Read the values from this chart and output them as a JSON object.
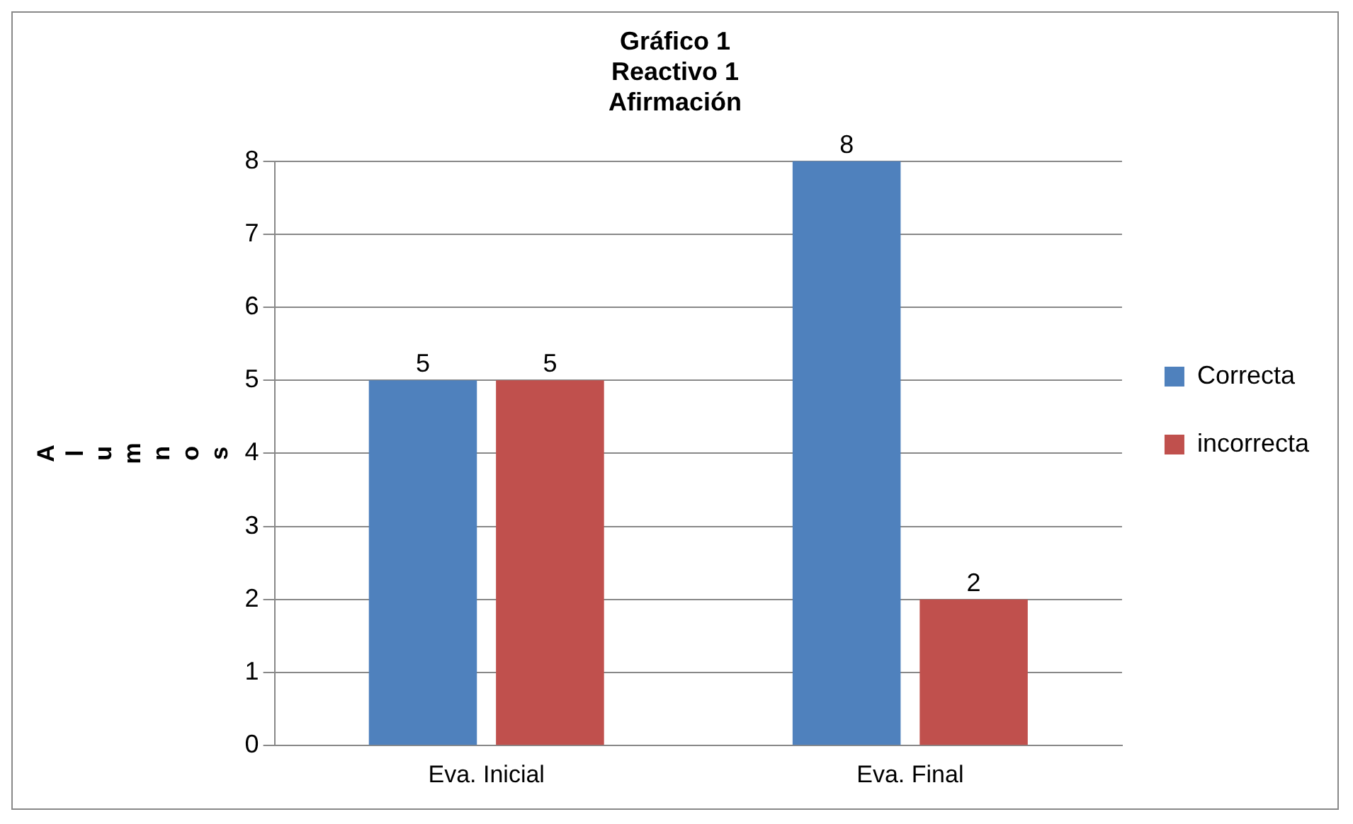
{
  "chart_data": {
    "type": "bar",
    "title": "Gráfico 1\nReactivo 1\nAfirmación",
    "ylabel": "Alumnos",
    "categories": [
      "Eva. Inicial",
      "Eva. Final"
    ],
    "series": [
      {
        "name": "Correcta",
        "color": "#4f81bd",
        "values": [
          5,
          8
        ]
      },
      {
        "name": "incorrecta",
        "color": "#c0504d",
        "values": [
          5,
          2
        ]
      }
    ],
    "ylim": [
      0,
      8
    ],
    "yticks": [
      0,
      1,
      2,
      3,
      4,
      5,
      6,
      7,
      8
    ],
    "grid": "y",
    "legend": "right",
    "data_labels": true
  }
}
